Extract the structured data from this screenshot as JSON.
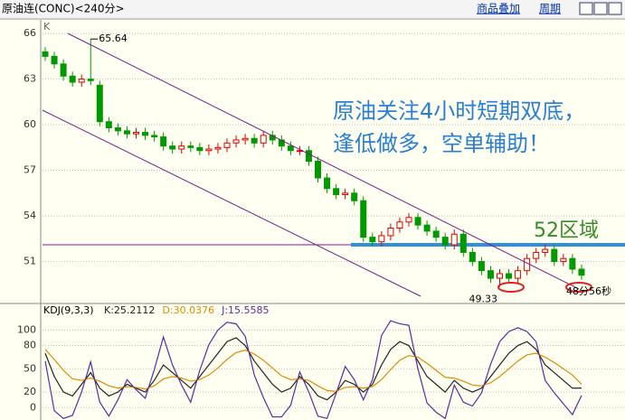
{
  "header": {
    "title": "原油连(CONC)<240分>",
    "links": [
      "商品叠加",
      "周期"
    ]
  },
  "chart_data": [
    {
      "type": "candlestick",
      "label": "K",
      "ylim": [
        48.3,
        66.9
      ],
      "yticks": [
        51,
        54,
        57,
        60,
        63,
        66
      ],
      "grid": true,
      "up_color": "#e00000",
      "down_color": "#009900",
      "open": [
        64.8,
        64.5,
        64.0,
        63.2,
        62.8,
        63.0,
        62.6,
        60.2,
        59.8,
        59.6,
        59.4,
        59.5,
        59.3,
        59.2,
        58.6,
        58.4,
        58.6,
        58.5,
        58.3,
        58.4,
        58.5,
        58.8,
        59.0,
        59.1,
        58.8,
        59.3,
        59.0,
        58.6,
        58.3,
        58.3,
        57.6,
        56.5,
        55.8,
        55.4,
        55.5,
        55.0,
        52.6,
        52.3,
        52.7,
        53.2,
        53.6,
        53.9,
        53.4,
        53.0,
        52.6,
        52.1,
        52.8,
        51.6,
        51.0,
        50.4,
        49.9,
        50.2,
        49.9,
        50.4,
        51.2,
        51.6,
        51.8,
        51.0,
        51.2,
        50.5
      ],
      "high": [
        65.1,
        64.8,
        64.3,
        63.5,
        63.3,
        65.64,
        62.9,
        60.5,
        60.1,
        59.9,
        59.8,
        59.8,
        59.6,
        59.5,
        58.9,
        58.9,
        58.9,
        58.8,
        58.7,
        58.8,
        59.1,
        59.3,
        59.4,
        59.4,
        59.6,
        59.6,
        59.3,
        58.9,
        58.6,
        58.6,
        57.9,
        56.8,
        56.1,
        55.8,
        55.8,
        55.3,
        52.9,
        53.0,
        53.5,
        53.9,
        54.2,
        54.2,
        53.7,
        53.3,
        52.9,
        53.1,
        53.1,
        51.9,
        51.3,
        50.7,
        50.5,
        50.5,
        50.7,
        51.5,
        51.9,
        52.1,
        52.1,
        51.5,
        51.5,
        50.8
      ],
      "low": [
        64.2,
        63.7,
        62.9,
        62.5,
        62.5,
        62.6,
        59.9,
        59.5,
        59.3,
        59.1,
        59.1,
        59.0,
        58.9,
        58.3,
        58.1,
        58.1,
        58.2,
        58.0,
        58.0,
        58.1,
        58.2,
        58.5,
        58.7,
        58.5,
        58.5,
        58.7,
        58.3,
        58.0,
        58.0,
        57.3,
        56.2,
        55.5,
        55.1,
        55.1,
        54.7,
        52.3,
        52.0,
        52.0,
        52.4,
        52.9,
        53.3,
        53.1,
        52.7,
        52.3,
        51.8,
        51.8,
        51.3,
        50.7,
        50.1,
        49.6,
        49.33,
        49.6,
        49.6,
        50.1,
        50.9,
        51.3,
        50.7,
        50.7,
        50.2,
        49.8
      ],
      "close": [
        64.5,
        64.0,
        63.2,
        62.8,
        63.0,
        62.9,
        60.2,
        59.8,
        59.6,
        59.4,
        59.5,
        59.3,
        59.2,
        58.6,
        58.4,
        58.6,
        58.5,
        58.3,
        58.4,
        58.5,
        58.8,
        59.0,
        59.1,
        58.8,
        59.3,
        59.0,
        58.6,
        58.3,
        58.3,
        57.6,
        56.5,
        55.8,
        55.4,
        55.5,
        55.0,
        52.6,
        52.3,
        52.7,
        53.2,
        53.6,
        53.9,
        53.4,
        53.0,
        52.6,
        52.1,
        52.8,
        51.6,
        51.0,
        50.4,
        49.9,
        50.2,
        49.9,
        50.4,
        51.2,
        51.6,
        51.8,
        51.0,
        51.2,
        50.5,
        50.1
      ],
      "high_label": {
        "value": 65.64
      },
      "low_label": {
        "value": 49.33
      },
      "countdown": "48分56秒",
      "callout": [
        "原油关注4小时短期双底，",
        "逢低做多，空单辅助！"
      ],
      "level": {
        "text": "52区域",
        "value": 52.1,
        "color": "#2f8fdc"
      }
    },
    {
      "type": "line",
      "title": "KDJ(9,3,3)",
      "ylim": [
        -16,
        133
      ],
      "yticks": [
        0,
        20,
        50,
        80,
        100
      ],
      "grid": true,
      "series": [
        {
          "name": "K:25.2112",
          "color": "#222222",
          "values": [
            70,
            40,
            20,
            15,
            30,
            45,
            25,
            15,
            20,
            30,
            25,
            20,
            35,
            55,
            45,
            35,
            25,
            40,
            55,
            70,
            85,
            90,
            80,
            60,
            45,
            30,
            20,
            25,
            40,
            30,
            15,
            10,
            20,
            35,
            30,
            20,
            30,
            55,
            75,
            85,
            80,
            60,
            40,
            30,
            20,
            35,
            25,
            20,
            25,
            40,
            55,
            70,
            80,
            85,
            75,
            55,
            45,
            35,
            25,
            25.2112
          ]
        },
        {
          "name": "D:30.0376",
          "color": "#e08a00",
          "values": [
            75,
            62,
            48,
            37,
            35,
            38,
            34,
            28,
            25,
            27,
            26,
            24,
            28,
            37,
            40,
            38,
            34,
            36,
            42,
            51,
            62,
            71,
            74,
            69,
            61,
            51,
            41,
            36,
            37,
            35,
            28,
            22,
            21,
            26,
            27,
            25,
            27,
            36,
            49,
            61,
            67,
            65,
            57,
            48,
            39,
            38,
            34,
            29,
            28,
            32,
            40,
            50,
            60,
            68,
            70,
            65,
            58,
            50,
            42,
            30.0376
          ]
        },
        {
          "name": "J:15.5585",
          "color": "#5a2ca0",
          "values": [
            60,
            -4,
            -14,
            -10,
            20,
            59,
            7,
            -11,
            10,
            36,
            23,
            12,
            49,
            91,
            55,
            29,
            7,
            48,
            81,
            100,
            110,
            108,
            92,
            42,
            13,
            -12,
            -12,
            3,
            46,
            20,
            -11,
            -14,
            18,
            53,
            36,
            10,
            36,
            93,
            112,
            108,
            106,
            50,
            6,
            -6,
            -14,
            29,
            7,
            2,
            19,
            56,
            85,
            98,
            103,
            98,
            85,
            35,
            19,
            5,
            -9,
            15.5585
          ]
        }
      ]
    }
  ]
}
